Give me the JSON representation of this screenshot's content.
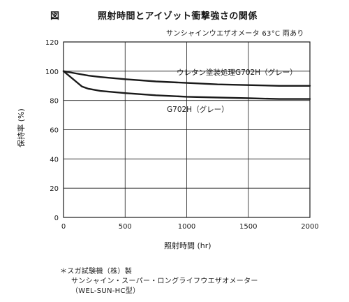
{
  "header": {
    "figure_label": "図",
    "title": "照射時間とアイゾット衝撃強さの関係"
  },
  "test_conditions": "サンシャインウエザオメータ 63°C 雨あり",
  "footnote": {
    "line1": "＊スガ試験機（株）製",
    "line2": "サンシャイン・スーパー・ロングライフウエザオメーター",
    "line3": "（WEL-SUN-HC型）"
  },
  "chart_data": {
    "type": "line",
    "xlabel": "照射時間 (hr)",
    "ylabel": "保持率 (%)",
    "xlim": [
      0,
      2000
    ],
    "ylim": [
      0,
      120
    ],
    "xticks": [
      0,
      500,
      1000,
      1500,
      2000
    ],
    "yticks": [
      0,
      20,
      40,
      60,
      80,
      100,
      120
    ],
    "grid": true,
    "legend": "inline labels",
    "series": [
      {
        "name": "ウレタン塗装処理G702H（グレー）",
        "x": [
          0,
          100,
          200,
          300,
          500,
          750,
          1000,
          1250,
          1500,
          1750,
          2000
        ],
        "y": [
          100,
          98.5,
          97,
          96,
          94.5,
          93,
          92,
          91,
          90.5,
          90,
          90
        ],
        "color": "#1a1a1a"
      },
      {
        "name": "G702H（グレー）",
        "x": [
          0,
          100,
          150,
          200,
          300,
          500,
          750,
          1000,
          1250,
          1500,
          1750,
          2000
        ],
        "y": [
          100,
          93,
          89.5,
          88,
          86.5,
          85,
          83.5,
          82.5,
          82,
          81.5,
          81,
          81
        ],
        "color": "#1a1a1a"
      }
    ]
  }
}
